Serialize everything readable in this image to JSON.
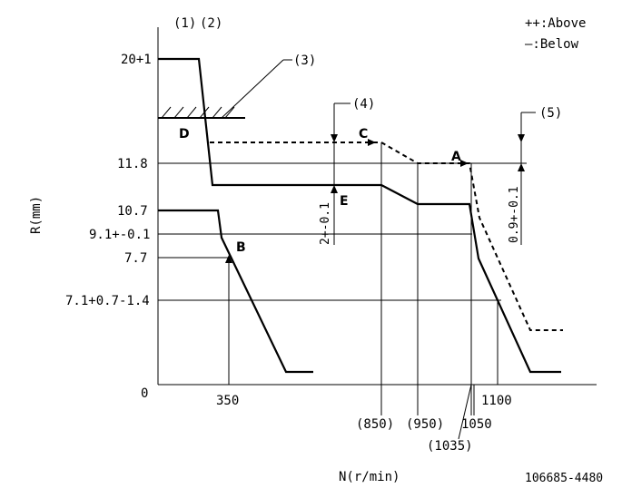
{
  "legend": {
    "above": "++:Above",
    "below": "—:Below"
  },
  "top_labels": {
    "one": "(1)",
    "two": "(2)",
    "three": "(3)",
    "four": "(4)",
    "five": "(5)"
  },
  "y_axis": {
    "title": "R(mm)",
    "ticks": [
      "20+1",
      "11.8",
      "10.7",
      "9.1+-0.1",
      "7.7",
      "7.1+0.7-1.4",
      "0"
    ]
  },
  "x_axis": {
    "title": "N(r/min)",
    "ticks": [
      "350",
      "(850)",
      "(950)",
      "1050",
      "(1035)",
      "1100"
    ]
  },
  "points": {
    "A": "A",
    "B": "B",
    "C": "C",
    "D": "D",
    "E": "E"
  },
  "dimensions": {
    "d4": "2+-0.1",
    "d5": "0.9+-0.1"
  },
  "doc_id": "106685-4480"
}
